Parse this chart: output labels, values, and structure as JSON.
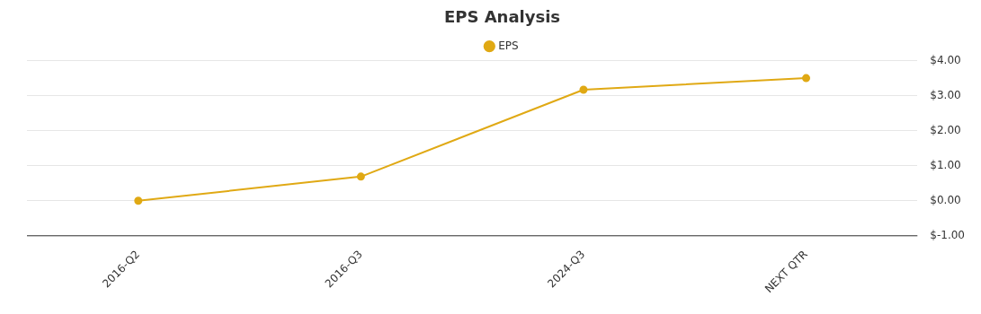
{
  "chart_data": {
    "type": "line",
    "title": "EPS Analysis",
    "categories": [
      "2016-Q2",
      "2016-Q3",
      "2024-Q3",
      "NEXT QTR"
    ],
    "series": [
      {
        "name": "EPS",
        "color": "#e0a914",
        "values": [
          0,
          0.69,
          3.17,
          3.5
        ]
      }
    ],
    "ylim": [
      -1,
      4
    ],
    "yticks": [
      {
        "value": -1,
        "label": "$-1.00"
      },
      {
        "value": 0,
        "label": "$0.00"
      },
      {
        "value": 1,
        "label": "$1.00"
      },
      {
        "value": 2,
        "label": "$2.00"
      },
      {
        "value": 3,
        "label": "$3.00"
      },
      {
        "value": 4,
        "label": "$4.00"
      }
    ],
    "grid": "y",
    "legend": "top",
    "marker": "circle",
    "line_style": "solid"
  }
}
